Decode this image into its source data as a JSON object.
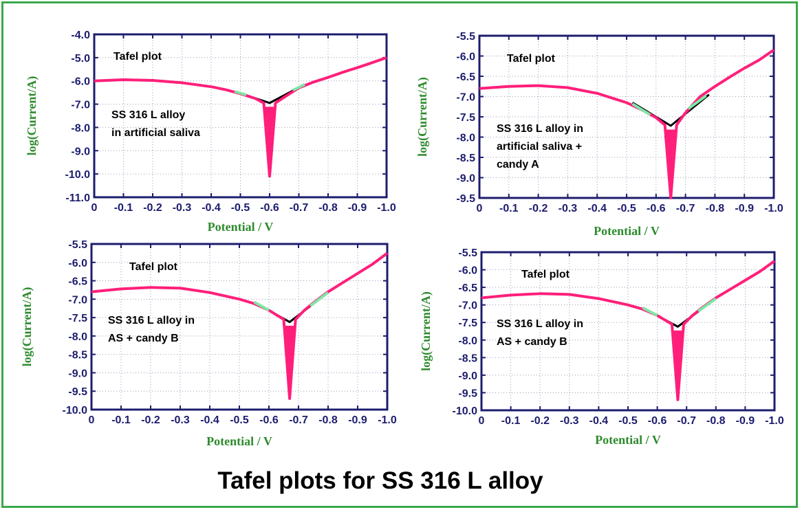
{
  "caption": "Tafel plots for SS 316 L alloy",
  "colors": {
    "frame": "#3aa84a",
    "axis": "#1c1c6e",
    "label": "#2e8b2e",
    "curve": "#ff1f7a",
    "fit": "#000000",
    "tangent": "#7fe6a6",
    "grid": "#9a9ab8"
  },
  "chart_data": [
    {
      "type": "line",
      "title": "Tafel plot",
      "annotation": [
        "SS 316 L alloy",
        "in artificial saliva"
      ],
      "xlabel": "Potential / V",
      "ylabel": "log(Current/A)",
      "xlim": [
        0,
        -1.0
      ],
      "ylim": [
        -11.0,
        -4.0
      ],
      "xticks": [
        "0",
        "-0.1",
        "-0.2",
        "-0.3",
        "-0.4",
        "-0.5",
        "-0.6",
        "-0.7",
        "-0.8",
        "-0.9",
        "-1.0"
      ],
      "yticks": [
        "-4.0",
        "-5.0",
        "-6.0",
        "-7.0",
        "-8.0",
        "-9.0",
        "-10.0",
        "-11.0"
      ],
      "grid": true,
      "ecorr": -0.6,
      "ymin": -10.1,
      "series": [
        {
          "x": [
            0,
            -0.1,
            -0.2,
            -0.3,
            -0.4,
            -0.45,
            -0.5,
            -0.55,
            -0.58,
            -0.6,
            -0.62,
            -0.65,
            -0.7,
            -0.75,
            -0.8,
            -0.85,
            -0.9,
            -0.95,
            -1.0
          ],
          "y": [
            -6.0,
            -5.95,
            -5.98,
            -6.08,
            -6.25,
            -6.38,
            -6.55,
            -6.75,
            -6.95,
            -10.1,
            -6.95,
            -6.7,
            -6.3,
            -6.05,
            -5.85,
            -5.63,
            -5.43,
            -5.22,
            -5.0
          ]
        }
      ],
      "fit": {
        "x": [
          -0.48,
          -0.6,
          -0.72
        ],
        "y": [
          -6.45,
          -6.95,
          -6.15
        ]
      },
      "tangents": [
        {
          "x": [
            -0.48,
            -0.52
          ],
          "y": [
            -6.45,
            -6.6
          ]
        },
        {
          "x": [
            -0.68,
            -0.72
          ],
          "y": [
            -6.4,
            -6.15
          ]
        }
      ]
    },
    {
      "type": "line",
      "title": "Tafel plot",
      "annotation": [
        "SS 316 L alloy in",
        "artificial saliva +",
        "candy A"
      ],
      "xlabel": "Potential / V",
      "ylabel": "log(Current/A)",
      "xlim": [
        0,
        -1.0
      ],
      "ylim": [
        -9.5,
        -5.5
      ],
      "xticks": [
        "0",
        "-0.1",
        "-0.2",
        "-0.3",
        "-0.4",
        "-0.5",
        "-0.6",
        "-0.7",
        "-0.8",
        "-0.9",
        "-1.0"
      ],
      "yticks": [
        "-5.5",
        "-6.0",
        "-6.5",
        "-7.0",
        "-7.5",
        "-8.0",
        "-8.5",
        "-9.0",
        "-9.5"
      ],
      "grid": true,
      "ecorr": -0.65,
      "ymin": -9.5,
      "series": [
        {
          "x": [
            0,
            -0.1,
            -0.2,
            -0.3,
            -0.4,
            -0.5,
            -0.55,
            -0.6,
            -0.63,
            -0.65,
            -0.67,
            -0.7,
            -0.75,
            -0.8,
            -0.85,
            -0.9,
            -0.95,
            -1.0
          ],
          "y": [
            -6.8,
            -6.75,
            -6.73,
            -6.78,
            -6.92,
            -7.15,
            -7.32,
            -7.52,
            -7.7,
            -9.5,
            -7.7,
            -7.4,
            -7.0,
            -6.75,
            -6.52,
            -6.3,
            -6.1,
            -5.85
          ]
        }
      ],
      "fit": {
        "x": [
          -0.52,
          -0.65,
          -0.78
        ],
        "y": [
          -7.15,
          -7.72,
          -6.95
        ]
      },
      "tangents": [
        {
          "x": [
            -0.52,
            -0.58
          ],
          "y": [
            -7.18,
            -7.45
          ]
        },
        {
          "x": [
            -0.71,
            -0.77
          ],
          "y": [
            -7.3,
            -6.98
          ]
        }
      ]
    },
    {
      "type": "line",
      "title": "Tafel plot",
      "annotation": [
        "SS 316 L alloy in",
        "AS + candy B"
      ],
      "xlabel": "Potential / V",
      "ylabel": "log(Current/A)",
      "xlim": [
        0,
        -1.0
      ],
      "ylim": [
        -10.0,
        -5.5
      ],
      "xticks": [
        "0",
        "-0.1",
        "-0.2",
        "-0.3",
        "-0.4",
        "-0.5",
        "-0.6",
        "-0.7",
        "-0.8",
        "-0.9",
        "-1.0"
      ],
      "yticks": [
        "-5.5",
        "-6.0",
        "-6.5",
        "-7.0",
        "-7.5",
        "-8.0",
        "-8.5",
        "-9.0",
        "-9.5",
        "-10.0"
      ],
      "grid": true,
      "ecorr": -0.67,
      "ymin": -9.7,
      "series": [
        {
          "x": [
            0,
            -0.1,
            -0.2,
            -0.3,
            -0.4,
            -0.5,
            -0.55,
            -0.6,
            -0.65,
            -0.67,
            -0.69,
            -0.72,
            -0.75,
            -0.8,
            -0.85,
            -0.9,
            -0.95,
            -1.0
          ],
          "y": [
            -6.8,
            -6.72,
            -6.68,
            -6.7,
            -6.82,
            -7.0,
            -7.12,
            -7.3,
            -7.55,
            -9.7,
            -7.55,
            -7.3,
            -7.1,
            -6.8,
            -6.55,
            -6.3,
            -6.05,
            -5.75
          ]
        }
      ],
      "fit": {
        "x": [
          -0.55,
          -0.67,
          -0.8
        ],
        "y": [
          -7.08,
          -7.62,
          -6.82
        ]
      },
      "tangents": [
        {
          "x": [
            -0.55,
            -0.6
          ],
          "y": [
            -7.08,
            -7.3
          ]
        },
        {
          "x": [
            -0.74,
            -0.8
          ],
          "y": [
            -7.18,
            -6.82
          ]
        }
      ]
    },
    {
      "type": "line",
      "title": "Tafel plot",
      "annotation": [
        "SS 316 L alloy in",
        "AS + candy B"
      ],
      "xlabel": "Potential / V",
      "ylabel": "log(Current/A)",
      "xlim": [
        0,
        -1.0
      ],
      "ylim": [
        -10.0,
        -5.5
      ],
      "xticks": [
        "0",
        "-0.1",
        "-0.2",
        "-0.3",
        "-0.4",
        "-0.5",
        "-0.6",
        "-0.7",
        "-0.8",
        "-0.9",
        "-1.0"
      ],
      "yticks": [
        "-5.5",
        "-6.0",
        "-6.5",
        "-7.0",
        "-7.5",
        "-8.0",
        "-8.5",
        "-9.0",
        "-9.5",
        "-10.0"
      ],
      "grid": true,
      "ecorr": -0.67,
      "ymin": -9.7,
      "series": [
        {
          "x": [
            0,
            -0.1,
            -0.2,
            -0.3,
            -0.4,
            -0.5,
            -0.55,
            -0.6,
            -0.65,
            -0.67,
            -0.69,
            -0.72,
            -0.75,
            -0.8,
            -0.85,
            -0.9,
            -0.95,
            -1.0
          ],
          "y": [
            -6.8,
            -6.72,
            -6.68,
            -6.7,
            -6.82,
            -7.0,
            -7.12,
            -7.3,
            -7.55,
            -9.7,
            -7.55,
            -7.3,
            -7.1,
            -6.8,
            -6.55,
            -6.3,
            -6.05,
            -5.75
          ]
        }
      ],
      "fit": {
        "x": [
          -0.55,
          -0.67,
          -0.8
        ],
        "y": [
          -7.08,
          -7.62,
          -6.82
        ]
      },
      "tangents": [
        {
          "x": [
            -0.55,
            -0.6
          ],
          "y": [
            -7.08,
            -7.3
          ]
        },
        {
          "x": [
            -0.74,
            -0.8
          ],
          "y": [
            -7.18,
            -6.82
          ]
        }
      ]
    }
  ]
}
